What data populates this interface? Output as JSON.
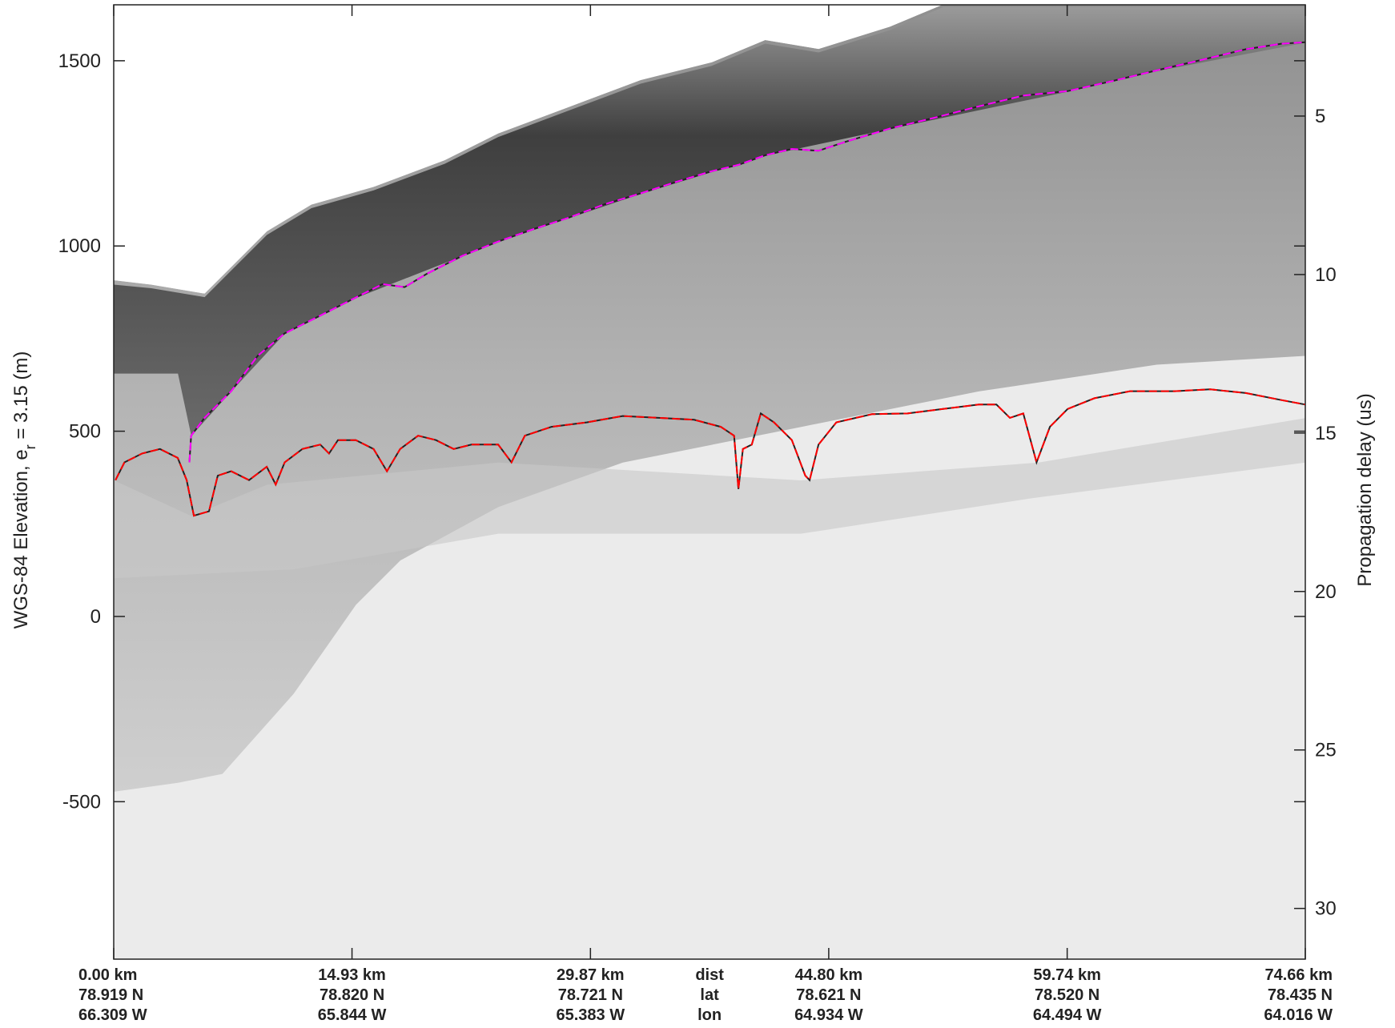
{
  "chart_data": {
    "type": "line",
    "y_label": "WGS-84 Elevation, e",
    "y_label_sub": "r",
    "y_label_tail": " = 3.15 (m)",
    "y2_label": "Propagation delay (us)",
    "xlim": [
      0,
      74.66
    ],
    "xticks": [
      {
        "value": 0,
        "label": "0.00 km"
      },
      {
        "value": 14.93,
        "label": "14.93 km"
      },
      {
        "value": 29.87,
        "label": "29.87 km"
      },
      {
        "value": 44.8,
        "label": "44.80 km"
      },
      {
        "value": 59.74,
        "label": "59.74 km"
      },
      {
        "value": 74.66,
        "label": "74.66 km"
      }
    ],
    "lat_labels": [
      "78.919 N",
      "78.820 N",
      "78.721 N",
      "78.621 N",
      "78.520 N",
      "78.435 N"
    ],
    "lon_labels": [
      "66.309 W",
      "65.844 W",
      "65.383 W",
      "64.934 W",
      "64.494 W",
      "64.016 W"
    ],
    "row_labels": [
      "dist",
      "lat",
      "lon"
    ],
    "ylim": [
      -925,
      1651
    ],
    "yticks": [
      -500,
      0,
      500,
      1000,
      1500
    ],
    "y2lim": [
      31.6,
      1.49
    ],
    "y2ticks": [
      5,
      10,
      15,
      20,
      25,
      30
    ],
    "dashed": true,
    "series": [
      {
        "color": "#ff00ff",
        "x": [
          4.74,
          4.85,
          5.69,
          7.36,
          9.03,
          10.71,
          12.94,
          15.17,
          16.84,
          18.23,
          19.63,
          21.86,
          24.09,
          26.32,
          28.55,
          30.78,
          33.01,
          35.24,
          37.47,
          39.14,
          40.82,
          42.49,
          44.16,
          45.84,
          48.62,
          51.41,
          54.2,
          56.99,
          59.77,
          62.56,
          65.35,
          68.14,
          70.93,
          73.16,
          74.66
        ],
        "values": [
          416,
          488,
          536,
          608,
          704,
          764,
          812,
          861,
          897,
          889,
          925,
          974,
          1012,
          1046,
          1077,
          1113,
          1142,
          1173,
          1202,
          1219,
          1245,
          1262,
          1257,
          1281,
          1317,
          1346,
          1377,
          1406,
          1418,
          1445,
          1474,
          1502,
          1531,
          1546,
          1550
        ]
      },
      {
        "color": "#ff0000",
        "x": [
          0.11,
          0.67,
          1.78,
          2.9,
          4.01,
          4.57,
          5.02,
          5.97,
          6.52,
          7.36,
          8.48,
          9.59,
          10.15,
          10.71,
          11.82,
          12.94,
          13.49,
          14.05,
          15.17,
          16.28,
          17.12,
          17.95,
          19.07,
          20.19,
          21.3,
          22.42,
          24.09,
          24.92,
          25.76,
          27.43,
          29.66,
          31.89,
          34.13,
          36.36,
          38.03,
          38.87,
          39.14,
          39.42,
          39.98,
          40.54,
          41.37,
          42.49,
          43.33,
          43.6,
          44.16,
          45.28,
          47.51,
          49.74,
          51.97,
          54.2,
          55.31,
          56.15,
          56.99,
          57.82,
          58.66,
          59.77,
          61.45,
          63.68,
          66.47,
          68.7,
          70.93,
          73.16,
          74.66
        ],
        "values": [
          368,
          416,
          440,
          452,
          428,
          368,
          272,
          284,
          380,
          392,
          368,
          404,
          356,
          416,
          452,
          464,
          440,
          476,
          476,
          452,
          392,
          452,
          488,
          476,
          452,
          464,
          464,
          416,
          488,
          512,
          524,
          541,
          536,
          531,
          512,
          488,
          344,
          452,
          464,
          548,
          524,
          476,
          380,
          368,
          464,
          524,
          546,
          548,
          560,
          572,
          572,
          536,
          548,
          416,
          512,
          560,
          589,
          608,
          608,
          613,
          603,
          584,
          572
        ]
      }
    ]
  }
}
